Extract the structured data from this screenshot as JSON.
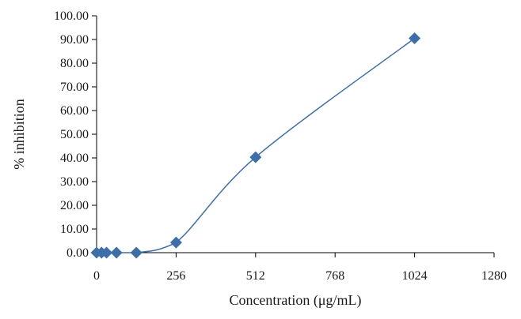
{
  "chart_data": {
    "type": "scatter",
    "title": "",
    "xlabel": "Concentration (μg/mL)",
    "ylabel": "% inhibition",
    "xlim": [
      0,
      1280
    ],
    "ylim": [
      0,
      100
    ],
    "x_ticks": [
      0,
      256,
      512,
      768,
      1024,
      1280
    ],
    "x_tick_labels": [
      "0",
      "256",
      "512",
      "768",
      "1024",
      "1280"
    ],
    "y_ticks": [
      0,
      10,
      20,
      30,
      40,
      50,
      60,
      70,
      80,
      90,
      100
    ],
    "y_tick_labels": [
      "0.00",
      "10.00",
      "20.00",
      "30.00",
      "40.00",
      "50.00",
      "60.00",
      "70.00",
      "80.00",
      "90.00",
      "100.00"
    ],
    "grid": false,
    "legend": "none",
    "smoothed_line": true,
    "marker": "diamond",
    "color": "#3d6ea8",
    "series": [
      {
        "x": [
          0,
          16,
          32,
          64,
          128,
          256,
          512,
          1024
        ],
        "y": [
          0.0,
          0.0,
          0.0,
          0.0,
          0.0,
          4.3,
          40.3,
          90.5
        ]
      }
    ]
  }
}
